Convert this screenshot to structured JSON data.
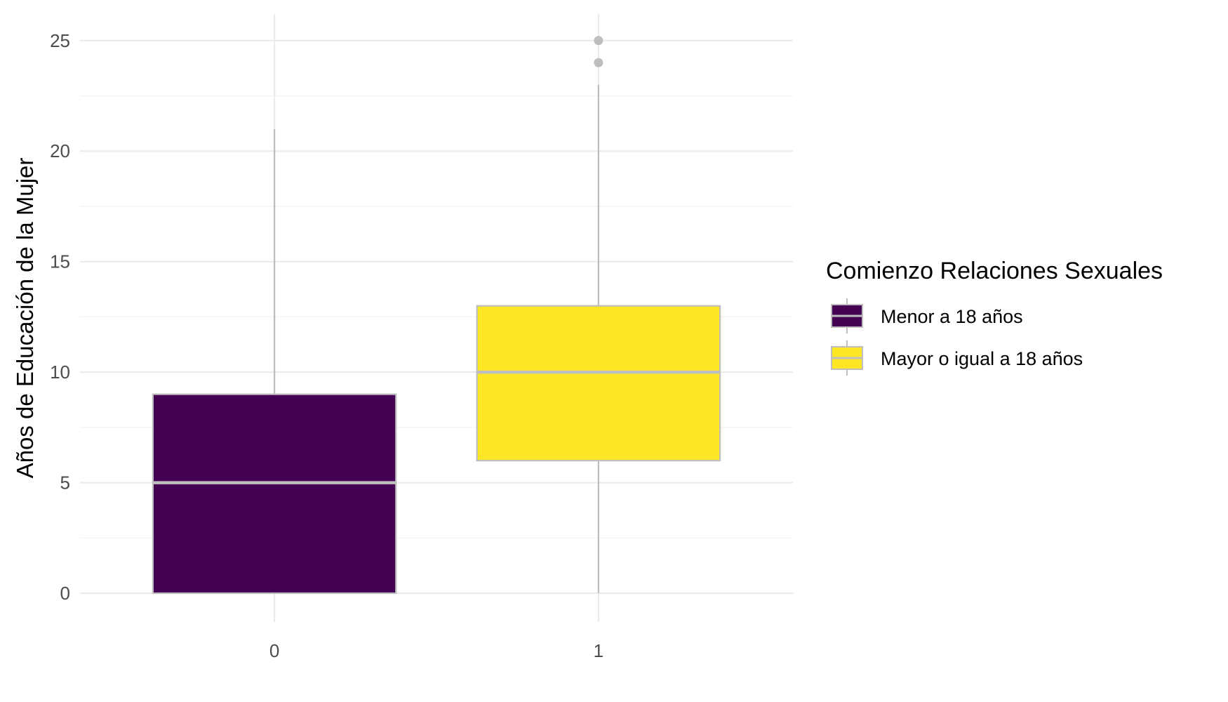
{
  "chart_data": {
    "type": "boxplot",
    "title": "",
    "xlabel": "",
    "ylabel": "Años de Educación de la Mujer",
    "ylim": [
      -1.3,
      26.2
    ],
    "yticks": [
      0,
      5,
      10,
      15,
      20,
      25
    ],
    "categories": [
      "0",
      "1"
    ],
    "grid": true,
    "legend_position": "right",
    "legend": {
      "title": "Comienzo Relaciones Sexuales",
      "entries": [
        "Menor a 18 años",
        "Mayor o igual a 18 años"
      ]
    },
    "boxes": [
      {
        "category": "0",
        "series": "Menor a 18 años",
        "color": "#440154",
        "whisker_low": 0,
        "q1": 0,
        "median": 5,
        "q3": 9,
        "whisker_high": 21,
        "outliers": []
      },
      {
        "category": "1",
        "series": "Mayor o igual a 18 años",
        "color": "#FDE725",
        "whisker_low": 0,
        "q1": 6,
        "median": 10,
        "q3": 13,
        "whisker_high": 23,
        "outliers": [
          24,
          25
        ]
      }
    ],
    "colors": {
      "grid_major": "#ebebeb",
      "grid_minor": "#f4f4f4",
      "box_outline": "#bebebe",
      "outlier": "#bebebe"
    }
  }
}
